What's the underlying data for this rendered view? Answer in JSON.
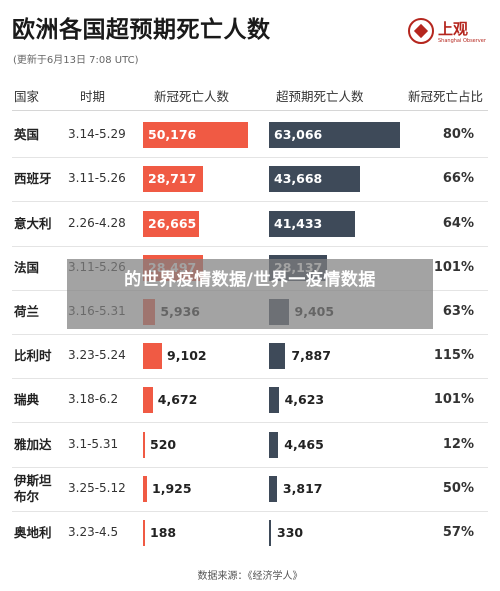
{
  "title": "欧洲各国超预期死亡人数",
  "subtitle": "(更新于6月13日 7:08 UTC)",
  "logo": {
    "text": "上观",
    "sub": "Shanghai Observer"
  },
  "headers": [
    "国家",
    "时期",
    "新冠死亡人数",
    "超预期死亡人数",
    "新冠死亡占比"
  ],
  "overlay_text": "的世界疫情数据/世界一疫情数据",
  "source": "数据来源：《经济学人》",
  "colors": {
    "covid_bar": "#f05a44",
    "excess_bar": "#3e4a59"
  },
  "chart_data": {
    "type": "table",
    "title": "欧洲各国超预期死亡人数",
    "columns": [
      "国家",
      "时期",
      "新冠死亡人数",
      "超预期死亡人数",
      "新冠死亡占比"
    ],
    "rows": [
      {
        "country": "英国",
        "period": "3.14-5.29",
        "covid": 50176,
        "covid_label": "50,176",
        "excess": 63066,
        "excess_label": "63,066",
        "pct": "80%"
      },
      {
        "country": "西班牙",
        "period": "3.11-5.26",
        "covid": 28717,
        "covid_label": "28,717",
        "excess": 43668,
        "excess_label": "43,668",
        "pct": "66%"
      },
      {
        "country": "意大利",
        "period": "2.26-4.28",
        "covid": 26665,
        "covid_label": "26,665",
        "excess": 41433,
        "excess_label": "41,433",
        "pct": "64%"
      },
      {
        "country": "法国",
        "period": "3.11-5.26",
        "covid": 28497,
        "covid_label": "28,497",
        "excess": 28137,
        "excess_label": "28,137",
        "pct": "101%"
      },
      {
        "country": "荷兰",
        "period": "3.16-5.31",
        "covid": 5936,
        "covid_label": "5,936",
        "excess": 9405,
        "excess_label": "9,405",
        "pct": "63%"
      },
      {
        "country": "比利时",
        "period": "3.23-5.24",
        "covid": 9102,
        "covid_label": "9,102",
        "excess": 7887,
        "excess_label": "7,887",
        "pct": "115%"
      },
      {
        "country": "瑞典",
        "period": "3.18-6.2",
        "covid": 4672,
        "covid_label": "4,672",
        "excess": 4623,
        "excess_label": "4,623",
        "pct": "101%"
      },
      {
        "country": "雅加达",
        "period": "3.1-5.31",
        "covid": 520,
        "covid_label": "520",
        "excess": 4465,
        "excess_label": "4,465",
        "pct": "12%"
      },
      {
        "country": "伊斯坦\n布尔",
        "period": "3.25-5.12",
        "covid": 1925,
        "covid_label": "1,925",
        "excess": 3817,
        "excess_label": "3,817",
        "pct": "50%"
      },
      {
        "country": "奥地利",
        "period": "3.23-4.5",
        "covid": 188,
        "covid_label": "188",
        "excess": 330,
        "excess_label": "330",
        "pct": "57%"
      }
    ]
  }
}
